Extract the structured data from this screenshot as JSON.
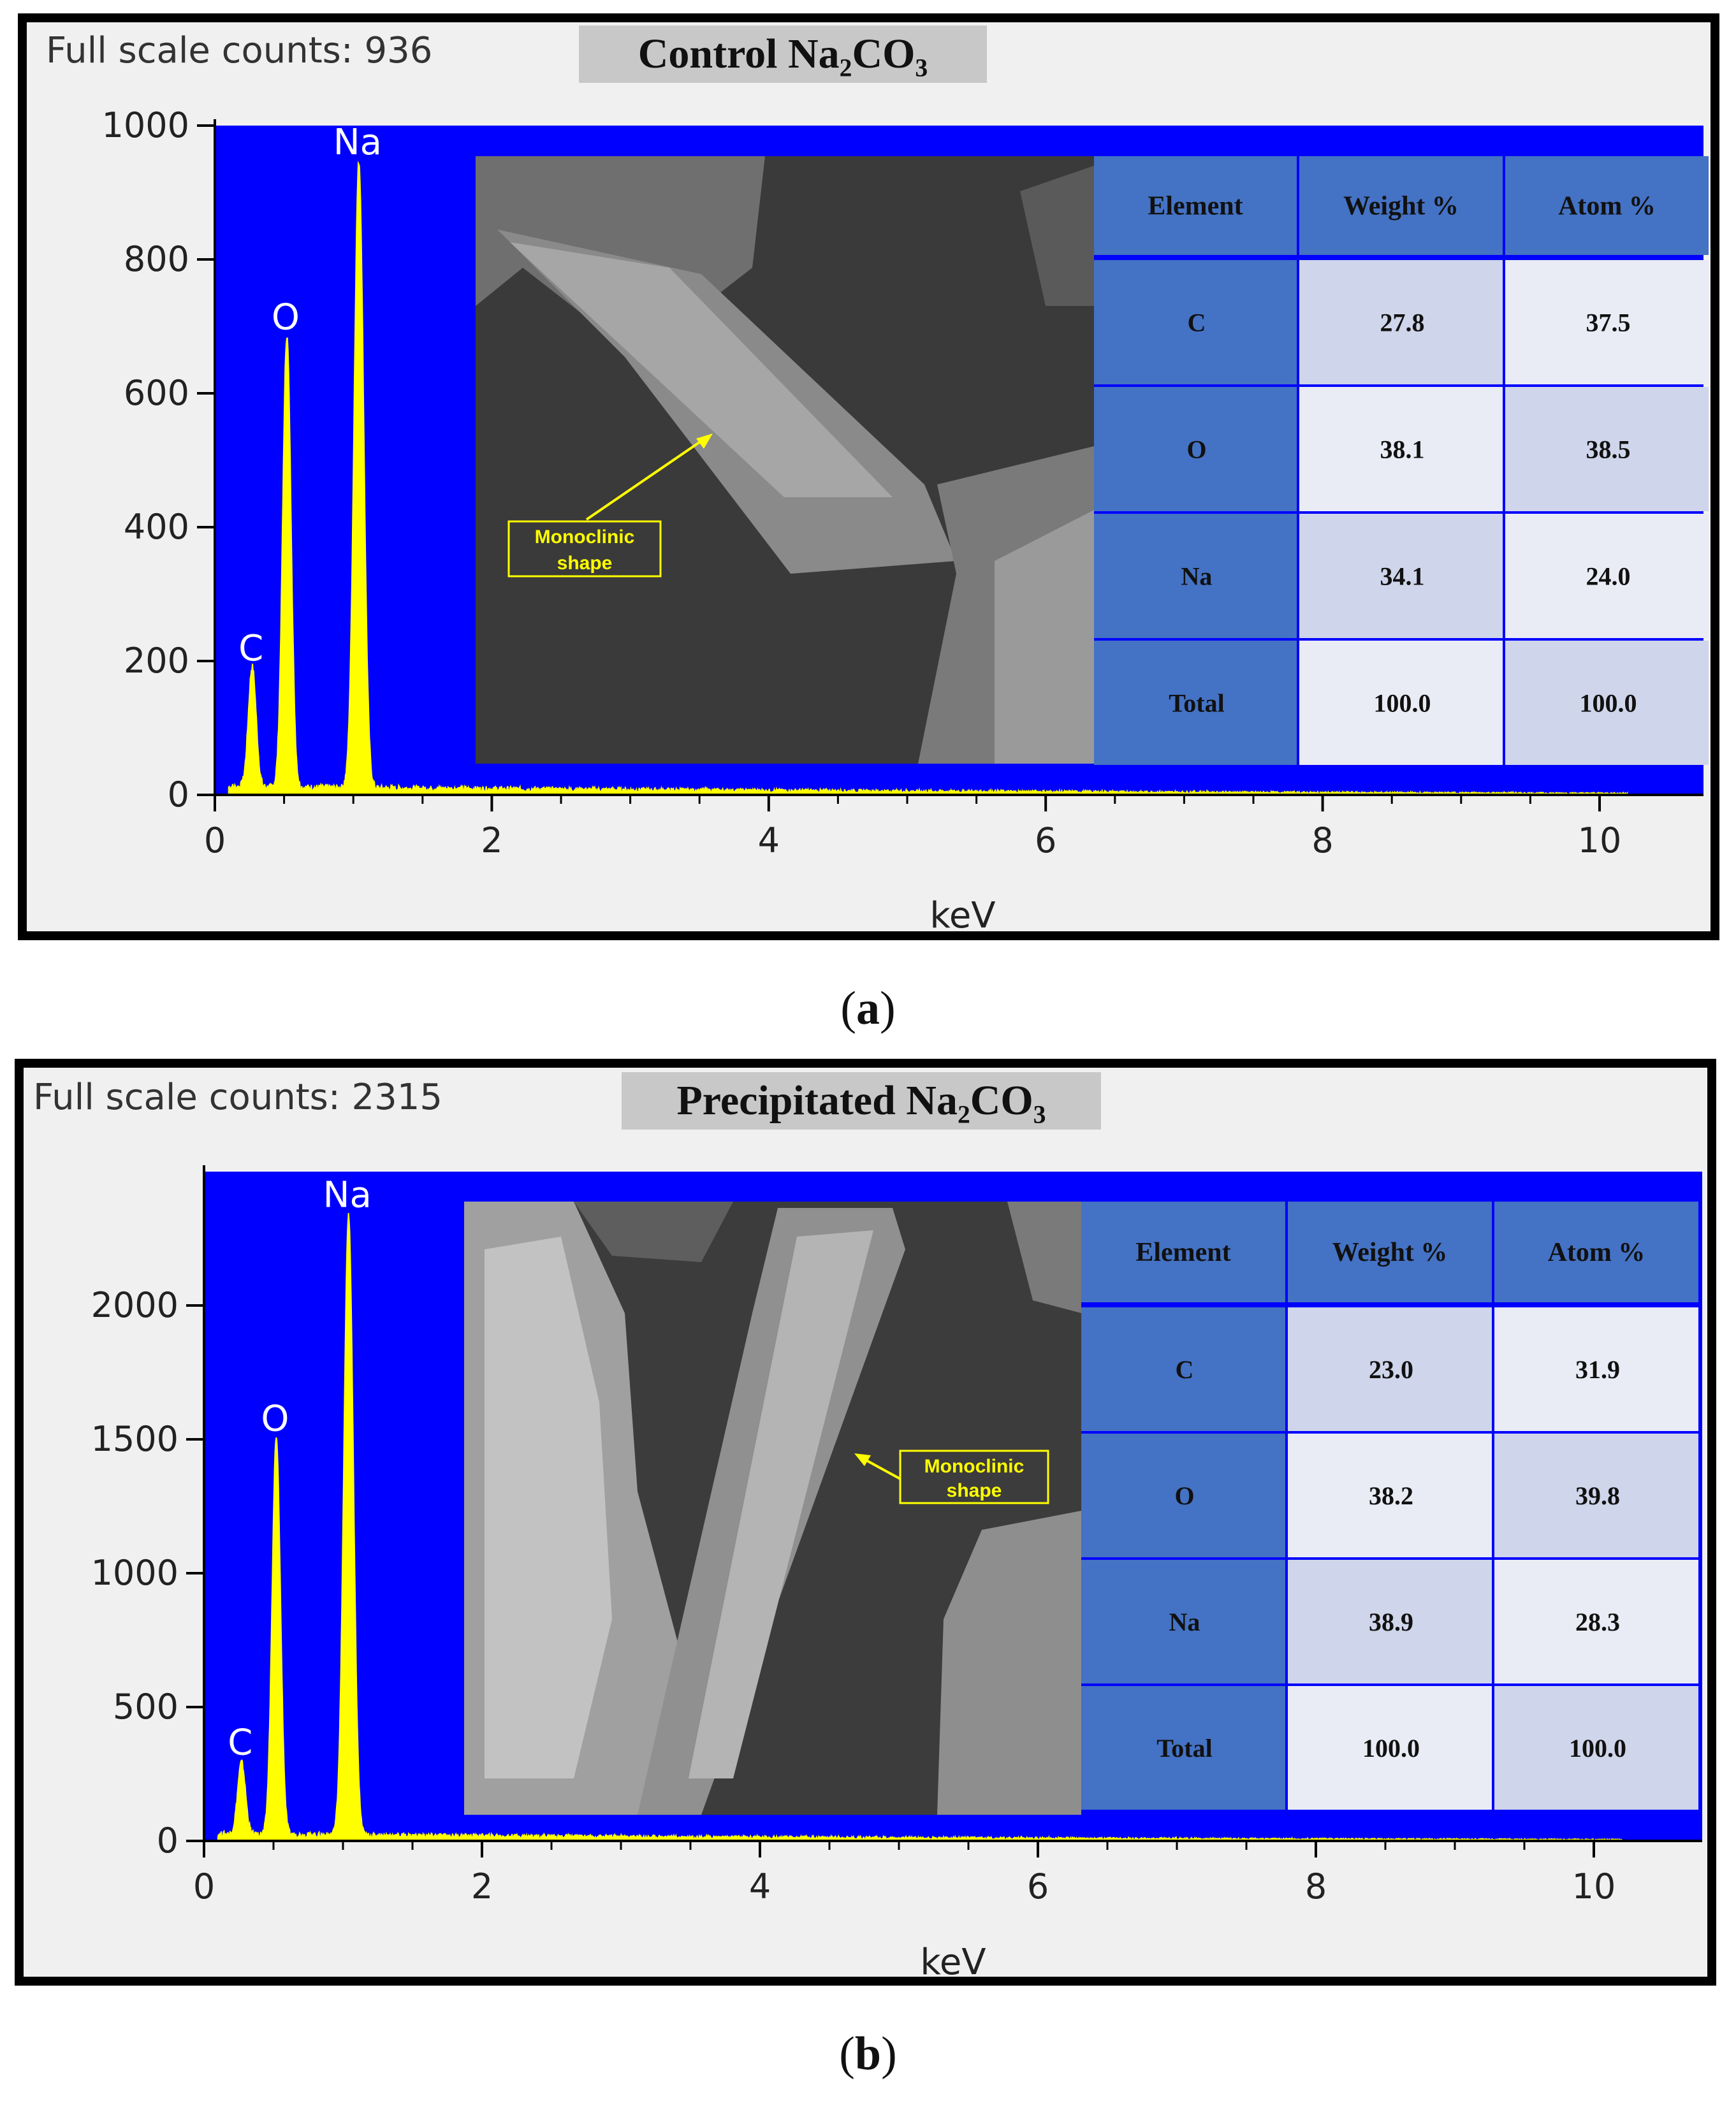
{
  "colors": {
    "plot_bg": "#0000ff",
    "spectrum": "#ffff00",
    "table_header": "#4472c4",
    "table_light": "#cfd5ea",
    "table_lighter": "#e9ebf5",
    "frame": "#000000",
    "panel_bg": "#f0f0f0",
    "title_box": "#c8c8c8"
  },
  "panels": [
    {
      "id": "a",
      "full_scale_label": "Full scale counts: 936",
      "title": "Control Na₂CO₃",
      "caption_letter": "a",
      "annotation": [
        "Monoclinic",
        "shape"
      ],
      "table": {
        "headers": [
          "Element",
          "Weight %",
          "Atom %"
        ],
        "rows": [
          [
            "C",
            "27.8",
            "37.5"
          ],
          [
            "O",
            "38.1",
            "38.5"
          ],
          [
            "Na",
            "34.1",
            "24.0"
          ],
          [
            "Total",
            "100.0",
            "100.0"
          ]
        ]
      }
    },
    {
      "id": "b",
      "full_scale_label": "Full scale counts: 2315",
      "title": "Precipitated Na₂CO₃",
      "caption_letter": "b",
      "annotation": [
        "Monoclinic",
        "shape"
      ],
      "table": {
        "headers": [
          "Element",
          "Weight %",
          "Atom %"
        ],
        "rows": [
          [
            "C",
            "23.0",
            "31.9"
          ],
          [
            "O",
            "38.2",
            "39.8"
          ],
          [
            "Na",
            "38.9",
            "28.3"
          ],
          [
            "Total",
            "100.0",
            "100.0"
          ]
        ]
      }
    }
  ],
  "chart_data": [
    {
      "type": "line",
      "title": "Control Na₂CO₃",
      "xlabel": "keV",
      "ylabel": "",
      "xlim": [
        0,
        10.2
      ],
      "ylim": [
        0,
        1000
      ],
      "x_ticks": [
        0,
        2,
        4,
        6,
        8,
        10
      ],
      "y_ticks": [
        0,
        200,
        400,
        600,
        800,
        1000
      ],
      "grid": false,
      "baseline_counts": 12,
      "peaks": [
        {
          "label": "C",
          "x": 0.27,
          "y": 180
        },
        {
          "label": "O",
          "x": 0.52,
          "y": 675
        },
        {
          "label": "Na",
          "x": 1.04,
          "y": 936
        }
      ]
    },
    {
      "type": "line",
      "title": "Precipitated Na₂CO₃",
      "xlabel": "keV",
      "ylabel": "",
      "xlim": [
        0,
        10.2
      ],
      "ylim": [
        0,
        2500
      ],
      "x_ticks": [
        0,
        2,
        4,
        6,
        8,
        10
      ],
      "y_ticks": [
        0,
        500,
        1000,
        1500,
        2000
      ],
      "grid": false,
      "baseline_counts": 25,
      "peaks": [
        {
          "label": "C",
          "x": 0.27,
          "y": 270
        },
        {
          "label": "O",
          "x": 0.52,
          "y": 1480
        },
        {
          "label": "Na",
          "x": 1.04,
          "y": 2315
        }
      ]
    }
  ]
}
